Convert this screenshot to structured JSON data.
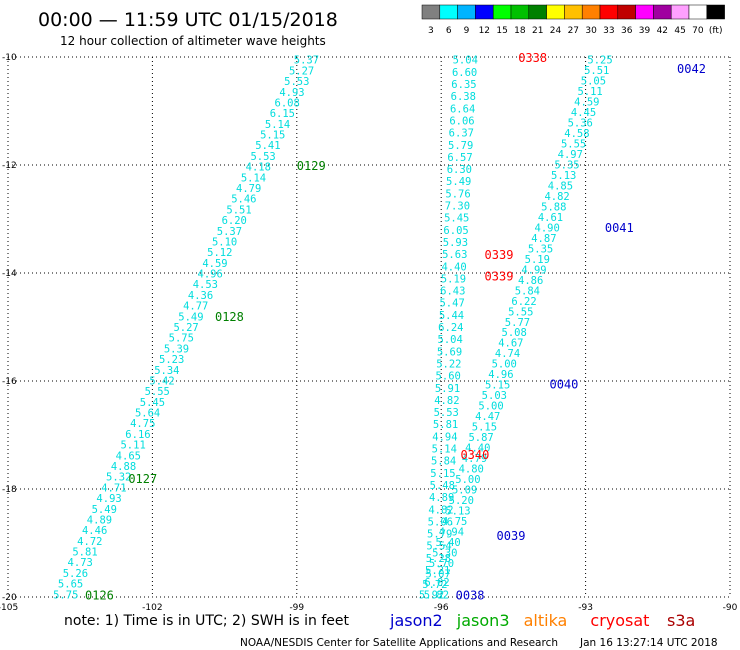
{
  "header": {
    "title": "00:00 — 11:59 UTC 01/15/2018",
    "subtitle": "12 hour collection of altimeter wave heights"
  },
  "legend": {
    "levels": [
      "3",
      "6",
      "9",
      "12",
      "15",
      "18",
      "21",
      "24",
      "27",
      "30",
      "33",
      "36",
      "39",
      "42",
      "45",
      "70",
      "(ft)"
    ],
    "colors": [
      "#808080",
      "#00ffff",
      "#00b4ff",
      "#0000ff",
      "#00ff00",
      "#00c000",
      "#008000",
      "#ffff00",
      "#ffc000",
      "#ff8000",
      "#ff0000",
      "#c00000",
      "#ff00ff",
      "#a000a0",
      "#ffa0ff",
      "#ffffff",
      "#000000"
    ]
  },
  "chart_data": {
    "type": "scatter",
    "xlim": [
      -105,
      -90
    ],
    "ylim": [
      -20,
      -10
    ],
    "x_ticks": [
      "-105",
      "-102",
      "-99",
      "-96",
      "-93",
      "-90"
    ],
    "y_ticks": [
      "-10",
      "-12",
      "-14",
      "-16",
      "-18",
      "-20"
    ],
    "grid": true,
    "tracks": [
      {
        "id": "left",
        "color": "#00dddd",
        "start": [
          -98.8,
          -10.05
        ],
        "end": [
          -103.8,
          -19.95
        ],
        "values": [
          "5.37",
          "5.27",
          "5.53",
          "4.93",
          "6.08",
          "6.15",
          "5.14",
          "5.15",
          "5.41",
          "5.53",
          "4.18",
          "5.14",
          "4.79",
          "5.46",
          "5.51",
          "6.20",
          "5.37",
          "5.10",
          "5.12",
          "4.59",
          "4.96",
          "4.53",
          "4.36",
          "4.77",
          "5.49",
          "5.27",
          "5.75",
          "5.39",
          "5.23",
          "5.34",
          "5.42",
          "5.55",
          "5.45",
          "5.64",
          "4.75",
          "6.16",
          "5.11",
          "4.65",
          "4.88",
          "5.32",
          "4.71",
          "4.93",
          "5.49",
          "4.89",
          "4.46",
          "4.72",
          "5.81",
          "4.73",
          "5.26",
          "5.65",
          "5.75"
        ]
      },
      {
        "id": "middle",
        "color": "#00dddd",
        "start": [
          -95.5,
          -10.05
        ],
        "end": [
          -96.1,
          -19.95
        ],
        "values": [
          "5.04",
          "6.60",
          "6.35",
          "6.38",
          "6.64",
          "6.06",
          "6.37",
          "5.79",
          "6.57",
          "6.30",
          "5.49",
          "5.76",
          "7.30",
          "5.45",
          "6.05",
          "5.93",
          "5.63",
          "4.40",
          "5.19",
          "6.43",
          "5.47",
          "5.44",
          "6.24",
          "5.04",
          "5.69",
          "5.22",
          "5.60",
          "5.91",
          "4.82",
          "5.53",
          "5.81",
          "4.94",
          "5.14",
          "5.84",
          "5.15",
          "5.48",
          "4.89",
          "4.82",
          "5.06",
          "5.79",
          "5.54",
          "5.28",
          "5.21",
          "6.02",
          "5.82"
        ]
      },
      {
        "id": "middle-right",
        "color": "#00dddd",
        "start": [
          -92.7,
          -10.05
        ],
        "end": [
          -96.2,
          -19.95
        ],
        "values": [
          "5.25",
          "5.51",
          "5.05",
          "5.11",
          "4.59",
          "4.45",
          "5.36",
          "4.58",
          "5.55",
          "4.97",
          "5.35",
          "5.13",
          "4.85",
          "4.82",
          "5.88",
          "4.61",
          "4.90",
          "4.87",
          "5.35",
          "5.19",
          "4.99",
          "4.86",
          "5.84",
          "6.22",
          "5.55",
          "5.77",
          "5.08",
          "4.67",
          "4.74",
          "5.00",
          "4.96",
          "5.15",
          "5.03",
          "5.00",
          "4.47",
          "5.15",
          "5.87",
          "4.40",
          "4.79",
          "4.80",
          "5.00",
          "5.09",
          "5.20",
          "5.13",
          "4.75",
          "4.94",
          "5.40",
          "5.30",
          "5.70",
          "5.07",
          "5.72",
          "5.92"
        ]
      }
    ],
    "pass_labels": [
      {
        "text": "0129",
        "lon": -99.0,
        "lat": -12.0,
        "color": "#008000"
      },
      {
        "text": "0128",
        "lon": -100.7,
        "lat": -14.8,
        "color": "#008000"
      },
      {
        "text": "0127",
        "lon": -102.5,
        "lat": -17.8,
        "color": "#008000"
      },
      {
        "text": "0126",
        "lon": -103.4,
        "lat": -19.95,
        "color": "#008000"
      },
      {
        "text": "0338",
        "lon": -94.4,
        "lat": -10.0,
        "color": "#ff0000"
      },
      {
        "text": "0339",
        "lon": -95.1,
        "lat": -13.65,
        "color": "#ff0000"
      },
      {
        "text": "0339",
        "lon": -95.1,
        "lat": -14.05,
        "color": "#ff0000"
      },
      {
        "text": "0340",
        "lon": -95.6,
        "lat": -17.35,
        "color": "#ff0000"
      },
      {
        "text": "0042",
        "lon": -91.1,
        "lat": -10.2,
        "color": "#0000cc"
      },
      {
        "text": "0041",
        "lon": -92.6,
        "lat": -13.15,
        "color": "#0000cc"
      },
      {
        "text": "0040",
        "lon": -93.75,
        "lat": -16.05,
        "color": "#0000cc"
      },
      {
        "text": "0039",
        "lon": -94.85,
        "lat": -18.85,
        "color": "#0000cc"
      },
      {
        "text": "0038",
        "lon": -95.7,
        "lat": -19.95,
        "color": "#0000cc"
      }
    ]
  },
  "footer": {
    "note": "note: 1) Time is in UTC; 2) SWH is in feet",
    "satellites": [
      {
        "name": "jason2",
        "color": "#0000cc"
      },
      {
        "name": "jason3",
        "color": "#00aa00"
      },
      {
        "name": "altika",
        "color": "#ff8000"
      },
      {
        "name": "cryosat",
        "color": "#ff0000"
      },
      {
        "name": "s3a",
        "color": "#aa0000"
      }
    ],
    "credit": "NOAA/NESDIS Center for Satellite Applications and Research",
    "timestamp": "Jan 16 13:27:14 UTC 2018"
  }
}
